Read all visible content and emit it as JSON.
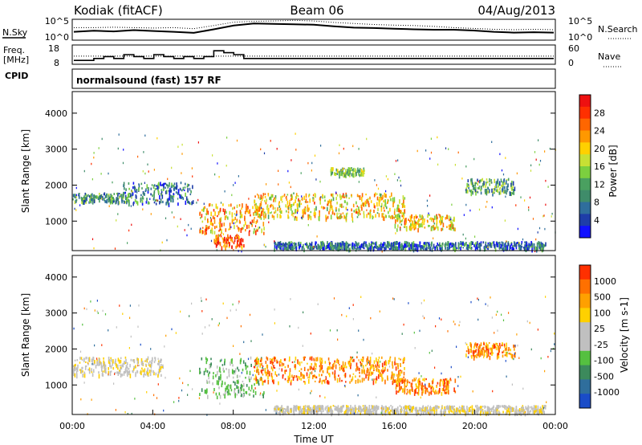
{
  "header": {
    "station": "Kodiak (fitACF)",
    "beam": "Beam 06",
    "date": "04/Aug/2013"
  },
  "aux_panels": {
    "noise": {
      "left_label": "N.Sky",
      "right_label": "N.Search",
      "left_ticks": [
        "10^5",
        "10^0"
      ],
      "right_ticks": [
        "10^5",
        "10^0"
      ],
      "sky_level": [
        0.4,
        0.45,
        0.42,
        0.48,
        0.44,
        0.4,
        0.35,
        0.52,
        0.7,
        0.8,
        0.78,
        0.76,
        0.74,
        0.66,
        0.6,
        0.58,
        0.55,
        0.52,
        0.5,
        0.5,
        0.46,
        0.4,
        0.36,
        0.38,
        0.36
      ],
      "search_level": [
        0.6,
        0.6,
        0.62,
        0.6,
        0.58,
        0.6,
        0.55,
        0.7,
        0.86,
        0.9,
        0.92,
        0.95,
        0.92,
        0.85,
        0.8,
        0.75,
        0.72,
        0.7,
        0.66,
        0.6,
        0.56,
        0.52,
        0.5,
        0.52,
        0.5
      ]
    },
    "freq": {
      "left_label_1": "Freq.",
      "left_label_2": "[MHz]",
      "right_label": "Nave",
      "left_ticks": [
        "18",
        "8"
      ],
      "right_ticks": [
        "60",
        "0"
      ],
      "freq_steps": [
        10,
        10,
        11,
        12,
        11,
        13,
        12,
        11,
        13,
        12,
        11,
        12,
        11,
        12,
        15,
        14,
        13,
        11,
        11,
        11,
        11,
        11,
        11,
        11,
        11,
        11,
        11,
        11,
        11,
        11,
        11,
        11,
        11,
        11,
        11,
        11,
        11,
        11,
        11,
        11,
        11,
        11,
        11,
        11,
        11,
        11,
        11,
        11
      ],
      "freq_range": [
        8,
        18
      ],
      "nave_level": 0.42
    },
    "cpid": {
      "label": "CPID",
      "value": "normalsound (fast) 157 RF"
    }
  },
  "chart_data": [
    {
      "type": "heatmap",
      "name": "power",
      "ylabel": "Slant Range [km]",
      "ylim": [
        180,
        4600
      ],
      "yticks": [
        "1000",
        "2000",
        "3000",
        "4000"
      ],
      "yticks_values": [
        1000,
        2000,
        3000,
        4000
      ],
      "colorbar_label": "Power [dB]",
      "colorbar_ticks": [
        "4",
        "8",
        "12",
        "16",
        "20",
        "24",
        "28"
      ],
      "colorbar_colors": [
        "#1010ff",
        "#1e3da8",
        "#2f6e9c",
        "#3f8c6a",
        "#4aa060",
        "#7ccf3f",
        "#c8e034",
        "#ffd000",
        "#ff9800",
        "#ff6600",
        "#ff3000",
        "#ee1010"
      ],
      "echo_regions": [
        {
          "t": [
            0.0,
            2.8
          ],
          "r": [
            1550,
            1800
          ],
          "level": 0.32
        },
        {
          "t": [
            2.5,
            6.0
          ],
          "r": [
            1500,
            2100
          ],
          "level": 0.25
        },
        {
          "t": [
            6.3,
            9.5
          ],
          "r": [
            700,
            1500
          ],
          "level": 0.7
        },
        {
          "t": [
            7.0,
            8.5
          ],
          "r": [
            300,
            650
          ],
          "level": 0.8
        },
        {
          "t": [
            9.0,
            16.5
          ],
          "r": [
            1100,
            1800
          ],
          "level": 0.62
        },
        {
          "t": [
            12.8,
            14.5
          ],
          "r": [
            2300,
            2500
          ],
          "level": 0.45
        },
        {
          "t": [
            16.0,
            19.0
          ],
          "r": [
            800,
            1200
          ],
          "level": 0.62
        },
        {
          "t": [
            19.5,
            22.0
          ],
          "r": [
            1800,
            2200
          ],
          "level": 0.35
        },
        {
          "t": [
            10.0,
            23.5
          ],
          "r": [
            250,
            450
          ],
          "level": 0.22
        }
      ]
    },
    {
      "type": "heatmap",
      "name": "velocity",
      "xlabel": "Time UT",
      "ylabel": "Slant Range [km]",
      "xlim": [
        0,
        24
      ],
      "xticks": [
        "00:00",
        "04:00",
        "08:00",
        "12:00",
        "16:00",
        "20:00",
        "00:00"
      ],
      "xticks_values": [
        0,
        4,
        8,
        12,
        16,
        20,
        24
      ],
      "ylim": [
        180,
        4600
      ],
      "yticks": [
        "1000",
        "2000",
        "3000",
        "4000"
      ],
      "yticks_values": [
        1000,
        2000,
        3000,
        4000
      ],
      "colorbar_label": "Velocity [m s-1]",
      "colorbar_ticks": [
        "1000",
        "500",
        "100",
        "25",
        "-25",
        "-100",
        "-500",
        "-1000"
      ],
      "colorbar_colors": [
        "#1a4cc8",
        "#2f6e9c",
        "#3c8a5c",
        "#55c040",
        "#c0c0c0",
        "#c0c0c0",
        "#ffd000",
        "#ffa000",
        "#ff7000",
        "#ff3000"
      ],
      "echo_regions": [
        {
          "t": [
            0.0,
            4.5
          ],
          "r": [
            1300,
            1800
          ],
          "kind": "ground"
        },
        {
          "t": [
            6.3,
            9.5
          ],
          "r": [
            700,
            1800
          ],
          "kind": "toward"
        },
        {
          "t": [
            9.0,
            16.5
          ],
          "r": [
            1100,
            1800
          ],
          "kind": "away"
        },
        {
          "t": [
            16.0,
            19.0
          ],
          "r": [
            800,
            1200
          ],
          "kind": "away"
        },
        {
          "t": [
            19.5,
            22.0
          ],
          "r": [
            1800,
            2200
          ],
          "kind": "away"
        },
        {
          "t": [
            10.0,
            23.5
          ],
          "r": [
            250,
            450
          ],
          "kind": "ground"
        }
      ]
    }
  ]
}
